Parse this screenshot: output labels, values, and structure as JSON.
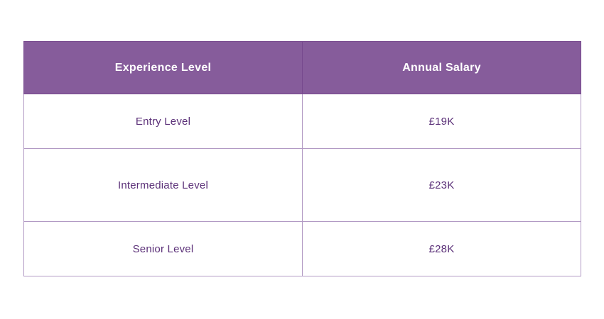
{
  "table": {
    "columns": [
      {
        "label": "Experience Level"
      },
      {
        "label": "Annual Salary"
      }
    ],
    "rows": [
      {
        "level": "Entry Level",
        "salary": "£19K"
      },
      {
        "level": "Intermediate Level",
        "salary": "£23K"
      },
      {
        "level": "Senior Level",
        "salary": "£28K"
      }
    ]
  },
  "colors": {
    "header_bg": "#865C9B",
    "header_text": "#FFFFFF",
    "body_text": "#5B3078",
    "border": "#B29AC4",
    "header_border": "#77498E"
  },
  "chart_data": {
    "type": "table",
    "title": "",
    "columns": [
      "Experience Level",
      "Annual Salary"
    ],
    "rows": [
      [
        "Entry Level",
        "£19K"
      ],
      [
        "Intermediate Level",
        "£23K"
      ],
      [
        "Senior Level",
        "£28K"
      ]
    ],
    "categories": [
      "Entry Level",
      "Intermediate Level",
      "Senior Level"
    ],
    "values_gbp_thousands": [
      19,
      23,
      28
    ],
    "currency": "GBP"
  }
}
